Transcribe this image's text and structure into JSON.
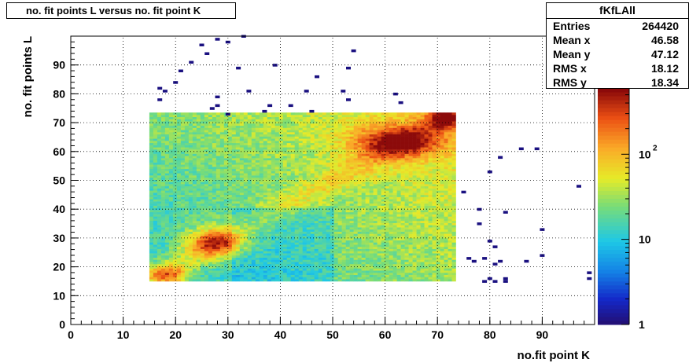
{
  "chart_data": {
    "type": "heatmap",
    "title": "no. fit points L versus no. fit point K",
    "xlabel": "no.fit point K",
    "ylabel": "no. fit points  L",
    "xlim": [
      0,
      100
    ],
    "ylim": [
      0,
      100
    ],
    "x_ticks": [
      "0",
      "10",
      "20",
      "30",
      "40",
      "50",
      "60",
      "70",
      "80",
      "90"
    ],
    "y_ticks": [
      "0",
      "10",
      "20",
      "30",
      "40",
      "50",
      "60",
      "70",
      "80",
      "90"
    ],
    "z_scale": "log",
    "z_range": [
      1,
      600
    ],
    "palette_labels": [
      "1",
      "10",
      "10",
      "2"
    ],
    "dense_region": {
      "x": [
        15,
        73
      ],
      "y": [
        15,
        73
      ]
    },
    "hotspots": [
      {
        "x": 18,
        "y": 17,
        "level": "high"
      },
      {
        "x": 27,
        "y": 28,
        "level": "high"
      },
      {
        "x": 63,
        "y": 63,
        "level": "high"
      },
      {
        "x": 71,
        "y": 71,
        "level": "max"
      }
    ],
    "sparse_points": [
      [
        17,
        82
      ],
      [
        18,
        81
      ],
      [
        17,
        78
      ],
      [
        20,
        84
      ],
      [
        21,
        88
      ],
      [
        23,
        91
      ],
      [
        25,
        97
      ],
      [
        26,
        94
      ],
      [
        28,
        99
      ],
      [
        30,
        98
      ],
      [
        27,
        75
      ],
      [
        28,
        76
      ],
      [
        28,
        79
      ],
      [
        30,
        73
      ],
      [
        32,
        89
      ],
      [
        34,
        81
      ],
      [
        37,
        74
      ],
      [
        38,
        76
      ],
      [
        39,
        90
      ],
      [
        42,
        76
      ],
      [
        45,
        81
      ],
      [
        46,
        74
      ],
      [
        47,
        86
      ],
      [
        52,
        81
      ],
      [
        53,
        89
      ],
      [
        53,
        78
      ],
      [
        54,
        95
      ],
      [
        62,
        80
      ],
      [
        63,
        77
      ],
      [
        33,
        100
      ],
      [
        75,
        46
      ],
      [
        78,
        40
      ],
      [
        78,
        35
      ],
      [
        80,
        53
      ],
      [
        82,
        58
      ],
      [
        83,
        39
      ],
      [
        86,
        61
      ],
      [
        89,
        61
      ],
      [
        90,
        33
      ],
      [
        90,
        24
      ],
      [
        76,
        23
      ],
      [
        77,
        22
      ],
      [
        79,
        23
      ],
      [
        80,
        29
      ],
      [
        81,
        27
      ],
      [
        81,
        21
      ],
      [
        82,
        22
      ],
      [
        83,
        16
      ],
      [
        83,
        15
      ],
      [
        87,
        22
      ],
      [
        79,
        15
      ],
      [
        80,
        16
      ],
      [
        81,
        15
      ],
      [
        97,
        48
      ],
      [
        99,
        18
      ],
      [
        99,
        16
      ]
    ],
    "stats": {
      "name": "fKfLAll",
      "rows": [
        {
          "label": "Entries",
          "value": "264420"
        },
        {
          "label": "Mean x",
          "value": "46.58"
        },
        {
          "label": "Mean y",
          "value": "47.12"
        },
        {
          "label": "RMS x",
          "value": "18.12"
        },
        {
          "label": "RMS y",
          "value": "18.34"
        }
      ]
    }
  }
}
